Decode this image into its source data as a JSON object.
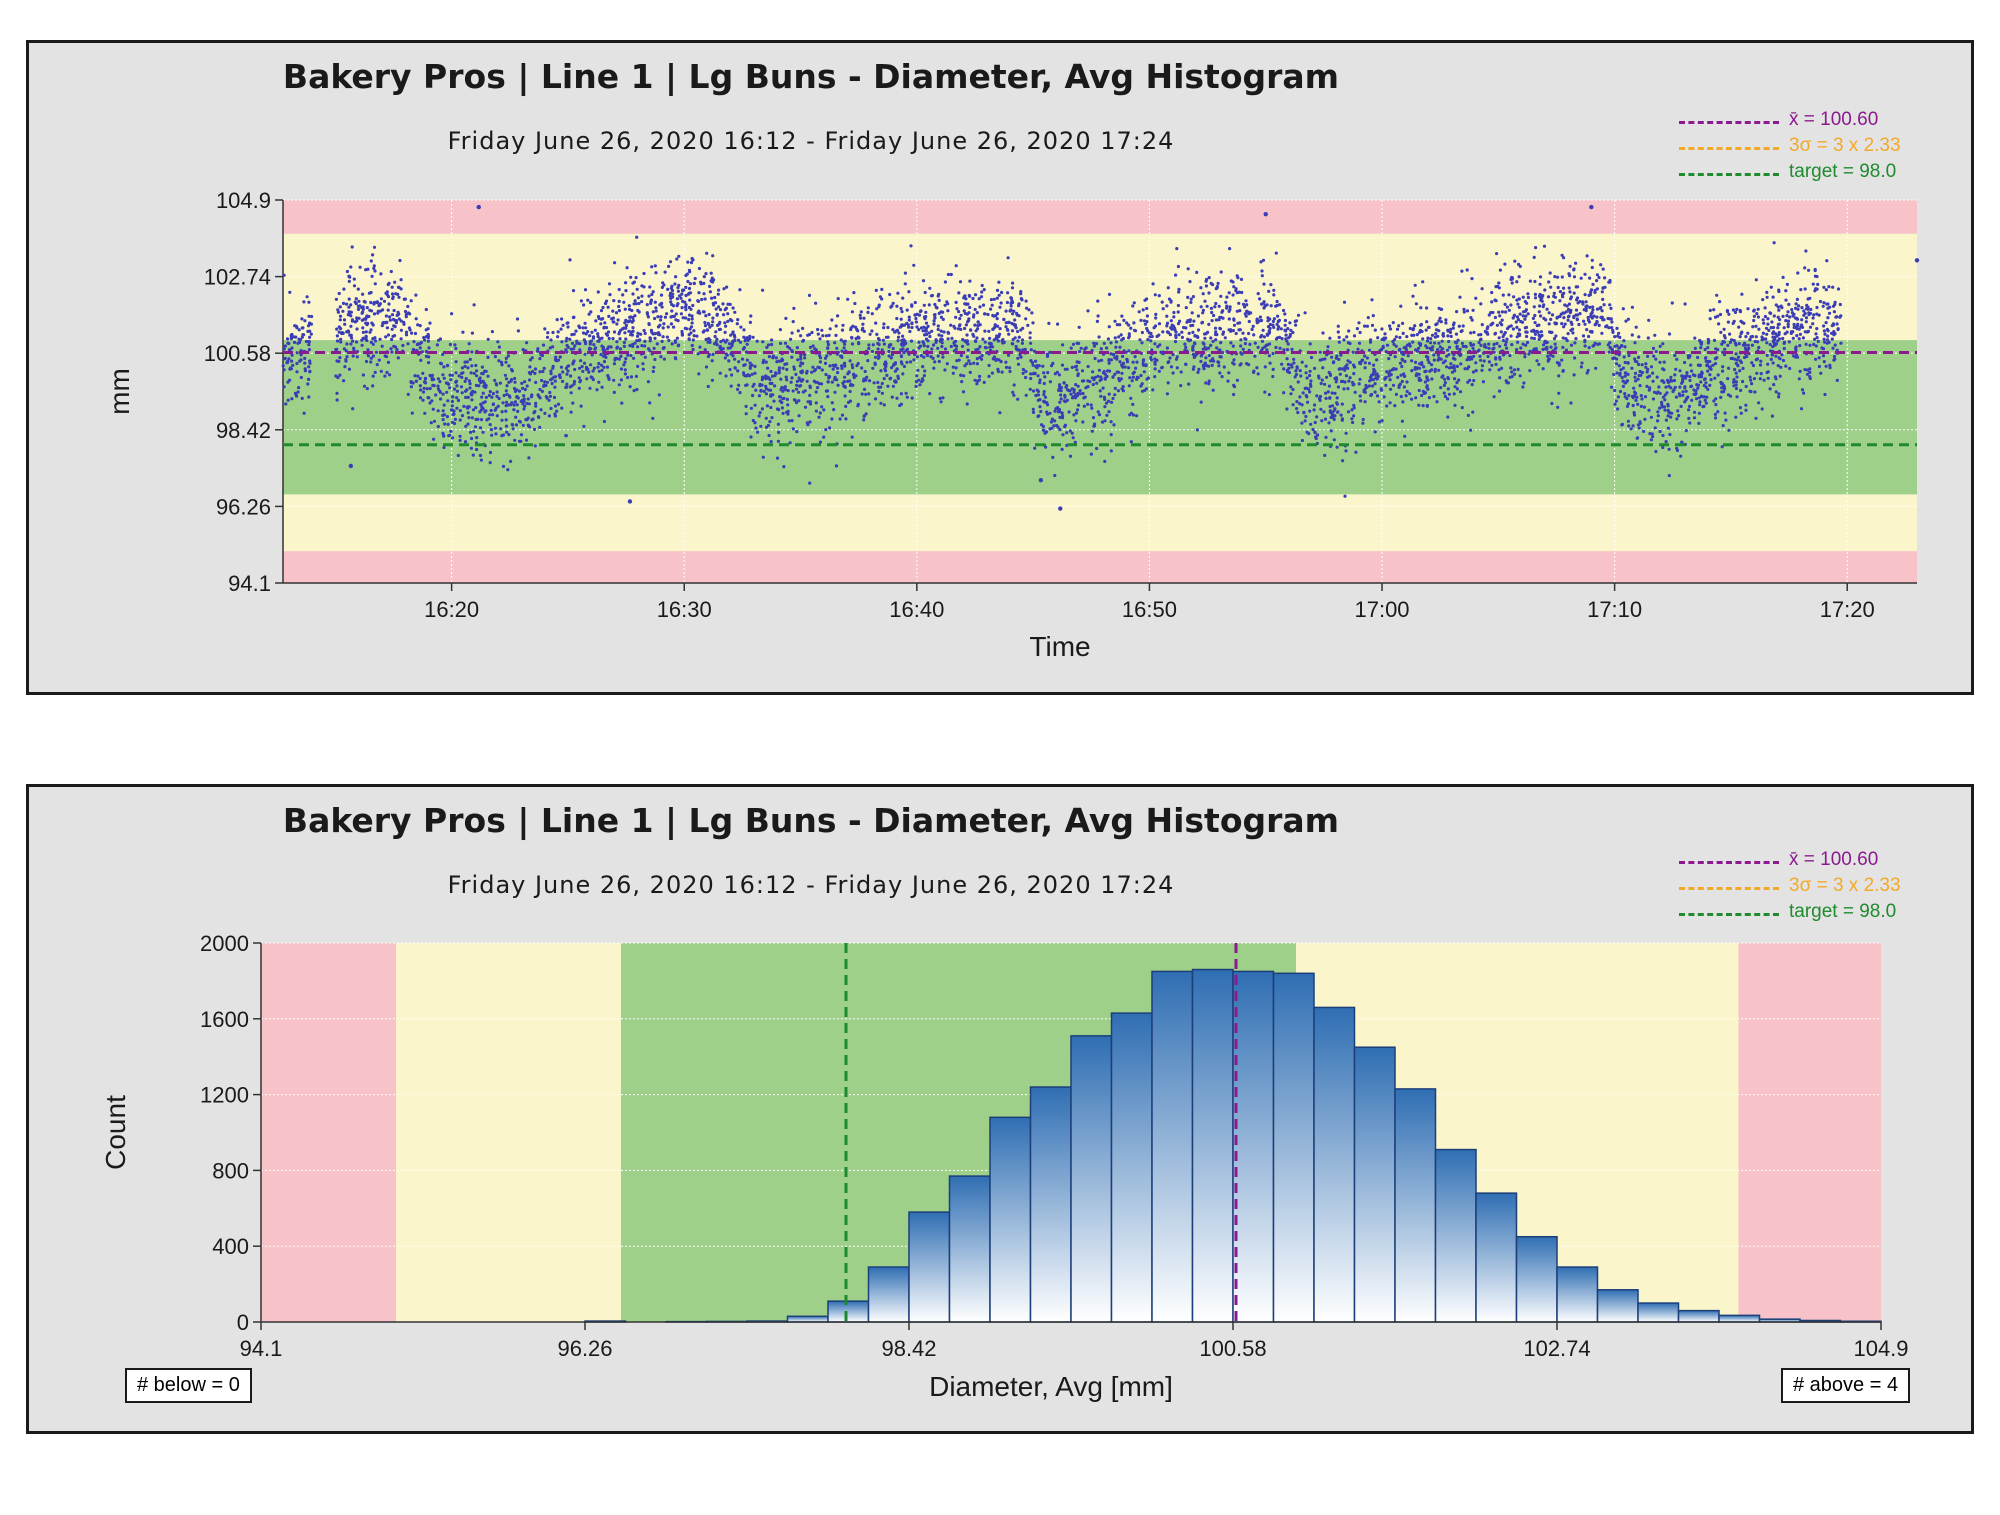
{
  "colors": {
    "red_zone": "#f7c3c8",
    "yellow_zone": "#fbf5cc",
    "green_zone": "#9ed08a",
    "mean_line": "#8b1a8e",
    "sigma_line": "#f2a92a",
    "target_line": "#1f8a2e",
    "points": "#3a3db5",
    "bar_top": "#2f6eb3",
    "bar_bottom": "#ffffff"
  },
  "legend": {
    "mean": "x̄ = 100.60",
    "sigma": "3σ = 3 x 2.33",
    "target": "target = 98.0"
  },
  "chart_data": [
    {
      "type": "scatter",
      "title": "Bakery Pros  |  Line 1  | Lg Buns - Diameter, Avg Histogram",
      "subtitle": "Friday June 26, 2020 16:12 - Friday June 26, 2020 17:24",
      "xlabel": "Time",
      "ylabel": "mm",
      "x_range": [
        "16:12:45",
        "17:23:00"
      ],
      "x_ticks": [
        "16:20",
        "16:30",
        "16:40",
        "16:50",
        "17:00",
        "17:10",
        "17:20"
      ],
      "ylim": [
        94.1,
        104.9
      ],
      "y_ticks": [
        "104.9",
        "102.74",
        "100.58",
        "98.42",
        "96.26",
        "94.1"
      ],
      "zones": [
        {
          "from": 94.1,
          "to": 95.0,
          "zone": "red"
        },
        {
          "from": 95.0,
          "to": 96.6,
          "zone": "yellow"
        },
        {
          "from": 96.6,
          "to": 100.95,
          "zone": "green"
        },
        {
          "from": 100.95,
          "to": 103.95,
          "zone": "yellow"
        },
        {
          "from": 103.95,
          "to": 104.9,
          "zone": "red"
        }
      ],
      "reference_lines": {
        "mean": 100.6,
        "target": 98.0
      },
      "trend_points": [
        {
          "x": "16:12:45",
          "y": 100.6
        },
        {
          "x": "16:15:00",
          "y": 100.6
        },
        {
          "x": "16:15:30",
          "y": 101.4
        },
        {
          "x": "16:17:40",
          "y": 101.7
        },
        {
          "x": "16:19:30",
          "y": 99.3
        },
        {
          "x": "16:23:00",
          "y": 99.3
        },
        {
          "x": "16:26:00",
          "y": 100.8
        },
        {
          "x": "16:30:30",
          "y": 101.9
        },
        {
          "x": "16:32:00",
          "y": 100.9
        },
        {
          "x": "16:33:30",
          "y": 99.6
        },
        {
          "x": "16:37:00",
          "y": 100.2
        },
        {
          "x": "16:40:00",
          "y": 101.0
        },
        {
          "x": "16:44:30",
          "y": 101.2
        },
        {
          "x": "16:45:30",
          "y": 99.3
        },
        {
          "x": "16:48:00",
          "y": 99.9
        },
        {
          "x": "16:51:00",
          "y": 101.0
        },
        {
          "x": "16:55:30",
          "y": 101.5
        },
        {
          "x": "16:57:00",
          "y": 99.2
        },
        {
          "x": "16:59:00",
          "y": 100.0
        },
        {
          "x": "17:04:00",
          "y": 100.9
        },
        {
          "x": "17:09:30",
          "y": 101.8
        },
        {
          "x": "17:10:30",
          "y": 99.6
        },
        {
          "x": "17:12:30",
          "y": 99.6
        },
        {
          "x": "17:17:00",
          "y": 101.1
        },
        {
          "x": "17:19:45",
          "y": 101.5
        }
      ],
      "data_gaps": [
        [
          "16:14:00",
          "16:15:00"
        ],
        [
          "17:20:00",
          "17:23:00"
        ]
      ],
      "spread_sd": 0.8,
      "outliers": [
        {
          "x": "16:21:10",
          "y": 104.7
        },
        {
          "x": "16:27:40",
          "y": 96.4
        },
        {
          "x": "16:46:10",
          "y": 96.2
        },
        {
          "x": "16:55:00",
          "y": 104.5
        },
        {
          "x": "17:09:00",
          "y": 104.7
        },
        {
          "x": "17:23:00",
          "y": 103.2
        },
        {
          "x": "16:15:40",
          "y": 97.4
        },
        {
          "x": "16:45:20",
          "y": 97.0
        }
      ],
      "legend_position": "top-right",
      "grid": true
    },
    {
      "type": "bar",
      "title": "Bakery Pros  |  Line 1  | Lg Buns - Diameter, Avg Histogram",
      "subtitle": "Friday June 26, 2020 16:12 - Friday June 26, 2020 17:24",
      "xlabel": "Diameter, Avg [mm]",
      "ylabel": "Count",
      "xlim": [
        94.1,
        104.9
      ],
      "x_ticks": [
        "94.1",
        "96.26",
        "98.42",
        "100.58",
        "102.74",
        "104.9"
      ],
      "ylim": [
        0,
        2000
      ],
      "y_ticks": [
        "0",
        "400",
        "800",
        "1200",
        "1600",
        "2000"
      ],
      "zones": [
        {
          "from": 94.1,
          "to": 95.0,
          "zone": "red"
        },
        {
          "from": 95.0,
          "to": 96.5,
          "zone": "yellow"
        },
        {
          "from": 96.5,
          "to": 101.0,
          "zone": "green"
        },
        {
          "from": 101.0,
          "to": 103.95,
          "zone": "yellow"
        },
        {
          "from": 103.95,
          "to": 104.9,
          "zone": "red"
        }
      ],
      "reference_lines": {
        "mean": 100.6,
        "target": 98.0
      },
      "bins": [
        {
          "start": 96.26,
          "end": 96.53,
          "count": 5
        },
        {
          "start": 96.53,
          "end": 96.8,
          "count": 0
        },
        {
          "start": 96.8,
          "end": 97.07,
          "count": 2
        },
        {
          "start": 97.07,
          "end": 97.34,
          "count": 3
        },
        {
          "start": 97.34,
          "end": 97.61,
          "count": 5
        },
        {
          "start": 97.61,
          "end": 97.88,
          "count": 30
        },
        {
          "start": 97.88,
          "end": 98.15,
          "count": 110
        },
        {
          "start": 98.15,
          "end": 98.42,
          "count": 290
        },
        {
          "start": 98.42,
          "end": 98.69,
          "count": 580
        },
        {
          "start": 98.69,
          "end": 98.96,
          "count": 770
        },
        {
          "start": 98.96,
          "end": 99.23,
          "count": 1080
        },
        {
          "start": 99.23,
          "end": 99.5,
          "count": 1240
        },
        {
          "start": 99.5,
          "end": 99.77,
          "count": 1510
        },
        {
          "start": 99.77,
          "end": 100.04,
          "count": 1630
        },
        {
          "start": 100.04,
          "end": 100.31,
          "count": 1850
        },
        {
          "start": 100.31,
          "end": 100.58,
          "count": 1860
        },
        {
          "start": 100.58,
          "end": 100.85,
          "count": 1850
        },
        {
          "start": 100.85,
          "end": 101.12,
          "count": 1840
        },
        {
          "start": 101.12,
          "end": 101.39,
          "count": 1660
        },
        {
          "start": 101.39,
          "end": 101.66,
          "count": 1450
        },
        {
          "start": 101.66,
          "end": 101.93,
          "count": 1230
        },
        {
          "start": 101.93,
          "end": 102.2,
          "count": 910
        },
        {
          "start": 102.2,
          "end": 102.47,
          "count": 680
        },
        {
          "start": 102.47,
          "end": 102.74,
          "count": 450
        },
        {
          "start": 102.74,
          "end": 103.01,
          "count": 290
        },
        {
          "start": 103.01,
          "end": 103.28,
          "count": 170
        },
        {
          "start": 103.28,
          "end": 103.55,
          "count": 100
        },
        {
          "start": 103.55,
          "end": 103.82,
          "count": 60
        },
        {
          "start": 103.82,
          "end": 104.09,
          "count": 35
        },
        {
          "start": 104.09,
          "end": 104.36,
          "count": 15
        },
        {
          "start": 104.36,
          "end": 104.63,
          "count": 8
        },
        {
          "start": 104.63,
          "end": 104.9,
          "count": 4
        }
      ],
      "below_label": "# below = 0",
      "above_label": "# above = 4",
      "legend_position": "top-right",
      "grid": true
    }
  ]
}
